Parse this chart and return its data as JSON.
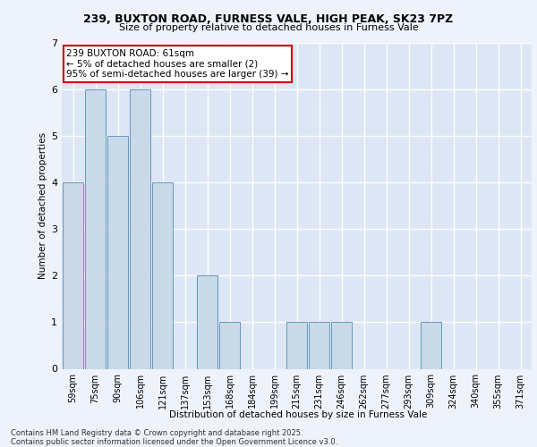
{
  "title1": "239, BUXTON ROAD, FURNESS VALE, HIGH PEAK, SK23 7PZ",
  "title2": "Size of property relative to detached houses in Furness Vale",
  "xlabel": "Distribution of detached houses by size in Furness Vale",
  "ylabel": "Number of detached properties",
  "categories": [
    "59sqm",
    "75sqm",
    "90sqm",
    "106sqm",
    "121sqm",
    "137sqm",
    "153sqm",
    "168sqm",
    "184sqm",
    "199sqm",
    "215sqm",
    "231sqm",
    "246sqm",
    "262sqm",
    "277sqm",
    "293sqm",
    "309sqm",
    "324sqm",
    "340sqm",
    "355sqm",
    "371sqm"
  ],
  "values": [
    4,
    6,
    5,
    6,
    4,
    0,
    2,
    1,
    0,
    0,
    1,
    1,
    1,
    0,
    0,
    0,
    1,
    0,
    0,
    0,
    0
  ],
  "bar_color": "#c9d9e8",
  "bar_edge_color": "#6699bb",
  "annotation_text": "239 BUXTON ROAD: 61sqm\n← 5% of detached houses are smaller (2)\n95% of semi-detached houses are larger (39) →",
  "annotation_box_color": "white",
  "annotation_box_edge": "#cc0000",
  "ylim": [
    0,
    7
  ],
  "yticks": [
    0,
    1,
    2,
    3,
    4,
    5,
    6,
    7
  ],
  "background_color": "#eef2fa",
  "plot_bg_color": "#dce6f5",
  "grid_color": "#ffffff",
  "footer_line1": "Contains HM Land Registry data © Crown copyright and database right 2025.",
  "footer_line2": "Contains public sector information licensed under the Open Government Licence v3.0."
}
